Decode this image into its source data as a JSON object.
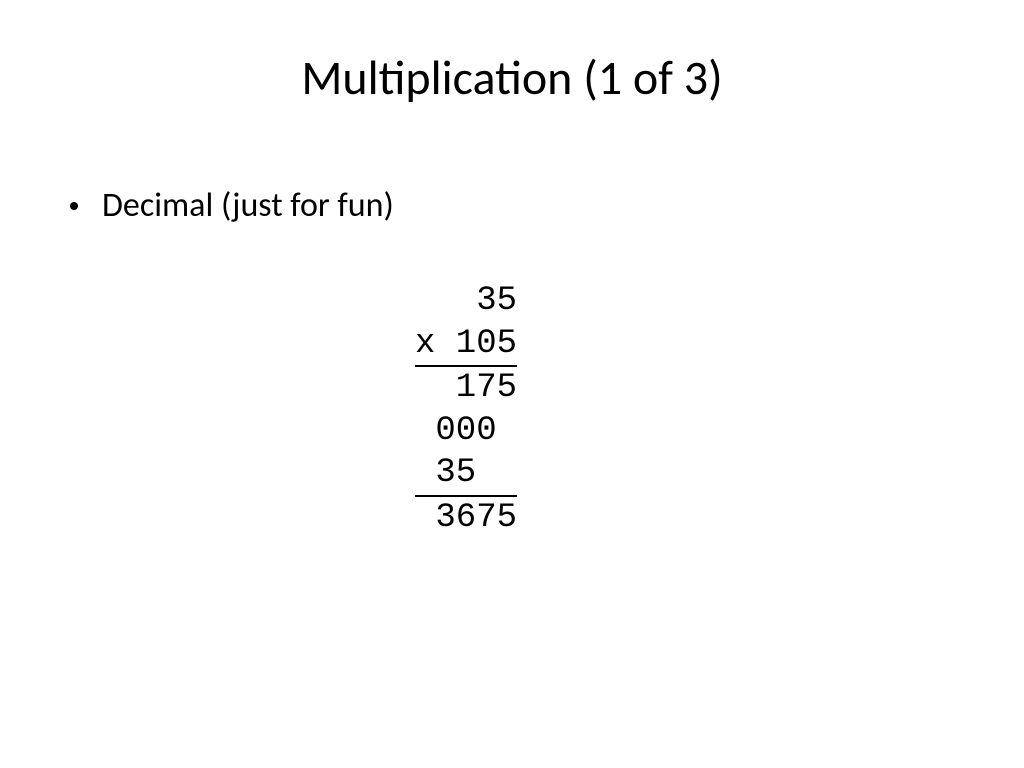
{
  "slide": {
    "title": "Multiplication (1 of 3)",
    "bullet": "Decimal (just for fun)",
    "math": {
      "font_family": "Courier New",
      "font_size_pt": 26,
      "text_color": "#000000",
      "underline_color": "#000000",
      "width_ch": 5,
      "lines": [
        {
          "text": "35",
          "underline": false
        },
        {
          "text": "x 105",
          "underline": true
        },
        {
          "text": "175",
          "underline": false
        },
        {
          "text": "000 ",
          "underline": false
        },
        {
          "text": "35  ",
          "underline": true
        },
        {
          "text": "3675",
          "underline": false
        }
      ]
    },
    "background_color": "#ffffff",
    "title_fontsize_pt": 36,
    "body_fontsize_pt": 26
  }
}
